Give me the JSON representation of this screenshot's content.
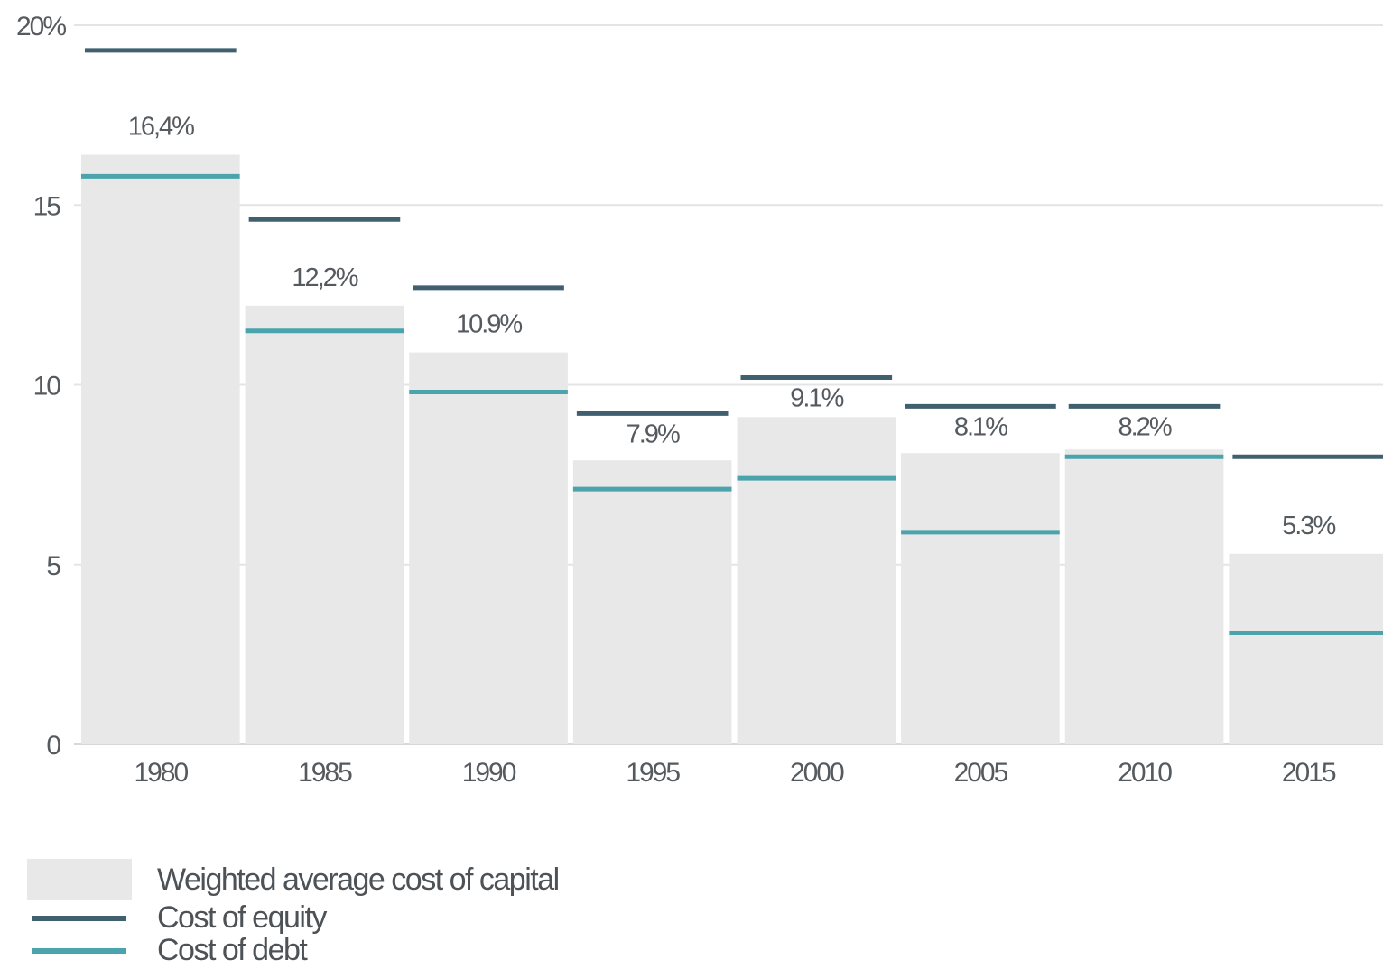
{
  "chart_data": {
    "type": "bar",
    "categories": [
      "1980",
      "1985",
      "1990",
      "1995",
      "2000",
      "2005",
      "2010",
      "2015"
    ],
    "series": [
      {
        "name": "Weighted average cost of capital",
        "values": [
          16.4,
          12.2,
          10.9,
          7.9,
          9.1,
          8.1,
          8.2,
          5.3
        ]
      },
      {
        "name": "Cost of equity",
        "values": [
          19.3,
          14.6,
          12.7,
          9.2,
          10.2,
          9.4,
          9.4,
          8.0
        ]
      },
      {
        "name": "Cost of debt",
        "values": [
          15.8,
          11.5,
          9.8,
          7.1,
          7.4,
          5.9,
          8.0,
          3.1
        ]
      }
    ],
    "value_labels": [
      "16,4%",
      "12,2%",
      "10.9%",
      "7.9%",
      "9.1%",
      "8.1%",
      "8.2%",
      "5.3%"
    ],
    "y_ticks": [
      "0",
      "5",
      "10",
      "15",
      "20%"
    ],
    "ylim": [
      0,
      20
    ],
    "grid": true,
    "legend_position": "bottom-left",
    "colors": {
      "wacc": "#e8e8e9",
      "equity": "#40606f",
      "debt": "#4ba3ac",
      "grid": "#e4e4e4",
      "text": "#555a5f"
    }
  },
  "legend": {
    "items": [
      {
        "label": "Weighted average cost of capital",
        "swatch": "box"
      },
      {
        "label": "Cost of equity",
        "swatch": "equity-line"
      },
      {
        "label": "Cost of debt",
        "swatch": "debt-line"
      }
    ]
  }
}
